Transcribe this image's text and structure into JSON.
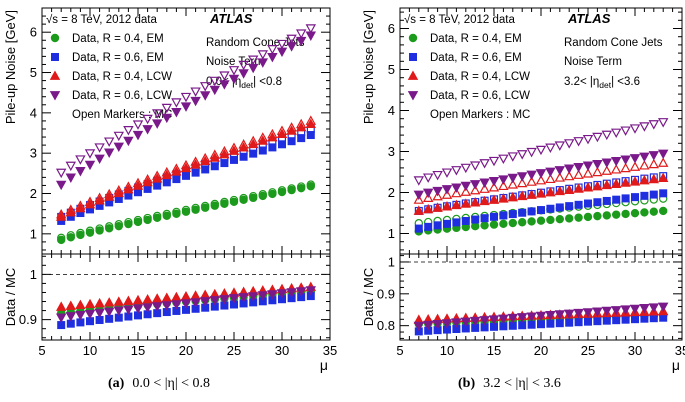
{
  "caption_a": {
    "label": "(a)",
    "text": "0.0 < |η| < 0.8"
  },
  "caption_b": {
    "label": "(b)",
    "text": "3.2 < |η| < 3.6"
  },
  "chart_data": [
    {
      "type": "scatter",
      "panel": "a",
      "atlas_label": "ATLAS",
      "energy_label": "√s = 8 TeV, 2012 data",
      "info_lines": [
        "Random Cone Jets",
        "Noise Term",
        "0.0< |η_det| <0.8"
      ],
      "open_markers_note": "Open Markers : MC",
      "ylabel": "Pile-up Noise [GeV]",
      "ratio_ylabel": "Data / MC",
      "xlabel": "μ",
      "xlim": [
        5,
        35
      ],
      "ylim": [
        0.5,
        6.6
      ],
      "ratio_ylim": [
        0.855,
        1.045
      ],
      "xticks": [
        5,
        10,
        15,
        20,
        25,
        30,
        35
      ],
      "yticks": [
        1,
        2,
        3,
        4,
        5,
        6
      ],
      "ratio_yticks": [
        0.9,
        1
      ],
      "x": [
        7,
        8,
        9,
        10,
        11,
        12,
        13,
        14,
        15,
        16,
        17,
        18,
        19,
        20,
        21,
        22,
        23,
        24,
        25,
        26,
        27,
        28,
        29,
        30,
        31,
        32,
        33
      ],
      "series": [
        {
          "name": "Data, R = 0.4, EM",
          "color": "#1c9a1c",
          "marker": "circle",
          "data_start": 0.85,
          "data_end": 2.18,
          "mc_start": 0.9,
          "mc_end": 2.22,
          "ratio_start": 0.915,
          "ratio_end": 0.962
        },
        {
          "name": "Data, R = 0.6, EM",
          "color": "#1f2fe0",
          "marker": "square",
          "data_start": 1.32,
          "data_end": 3.45,
          "mc_start": 1.42,
          "mc_end": 3.6,
          "ratio_start": 0.888,
          "ratio_end": 0.952
        },
        {
          "name": "Data, R = 0.4, LCW",
          "color": "#e01a1a",
          "marker": "triangle-up",
          "data_start": 1.42,
          "data_end": 3.72,
          "mc_start": 1.48,
          "mc_end": 3.8,
          "ratio_start": 0.928,
          "ratio_end": 0.972
        },
        {
          "name": "Data, R = 0.6, LCW",
          "color": "#7a1a8a",
          "marker": "triangle-down",
          "data_start": 2.22,
          "data_end": 5.92,
          "mc_start": 2.52,
          "mc_end": 6.1,
          "ratio_start": 0.905,
          "ratio_end": 0.965
        }
      ]
    },
    {
      "type": "scatter",
      "panel": "b",
      "atlas_label": "ATLAS",
      "energy_label": "√s = 8 TeV, 2012 data",
      "info_lines": [
        "Random Cone Jets",
        "Noise Term",
        "3.2< |η_det| <3.6"
      ],
      "open_markers_note": "Open Markers : MC",
      "ylabel": "Pile-up Noise [GeV]",
      "ratio_ylabel": "Data / MC",
      "xlabel": "μ",
      "xlim": [
        5,
        35
      ],
      "ylim": [
        0.5,
        6.5
      ],
      "ratio_ylim": [
        0.755,
        1.025
      ],
      "xticks": [
        5,
        10,
        15,
        20,
        25,
        30,
        35
      ],
      "yticks": [
        1,
        2,
        3,
        4,
        5,
        6
      ],
      "ratio_yticks": [
        0.8,
        0.9,
        1
      ],
      "x": [
        7,
        8,
        9,
        10,
        11,
        12,
        13,
        14,
        15,
        16,
        17,
        18,
        19,
        20,
        21,
        22,
        23,
        24,
        25,
        26,
        27,
        28,
        29,
        30,
        31,
        32,
        33
      ],
      "series": [
        {
          "name": "Data, R = 0.4, EM",
          "color": "#1c9a1c",
          "marker": "circle",
          "data_start": 1.05,
          "data_end": 1.55,
          "mc_start": 1.25,
          "mc_end": 1.85,
          "ratio_start": 0.805,
          "ratio_end": 0.832
        },
        {
          "name": "Data, R = 0.6, EM",
          "color": "#1f2fe0",
          "marker": "square",
          "data_start": 1.12,
          "data_end": 1.98,
          "mc_start": 1.55,
          "mc_end": 2.4,
          "ratio_start": 0.782,
          "ratio_end": 0.825
        },
        {
          "name": "Data, R = 0.4, LCW",
          "color": "#e01a1a",
          "marker": "triangle-up",
          "data_start": 1.55,
          "data_end": 2.35,
          "mc_start": 1.82,
          "mc_end": 2.72,
          "ratio_start": 0.818,
          "ratio_end": 0.845
        },
        {
          "name": "Data, R = 0.6, LCW",
          "color": "#7a1a8a",
          "marker": "triangle-down",
          "data_start": 1.95,
          "data_end": 2.95,
          "mc_start": 2.3,
          "mc_end": 3.72,
          "ratio_start": 0.8,
          "ratio_end": 0.86
        }
      ]
    }
  ]
}
